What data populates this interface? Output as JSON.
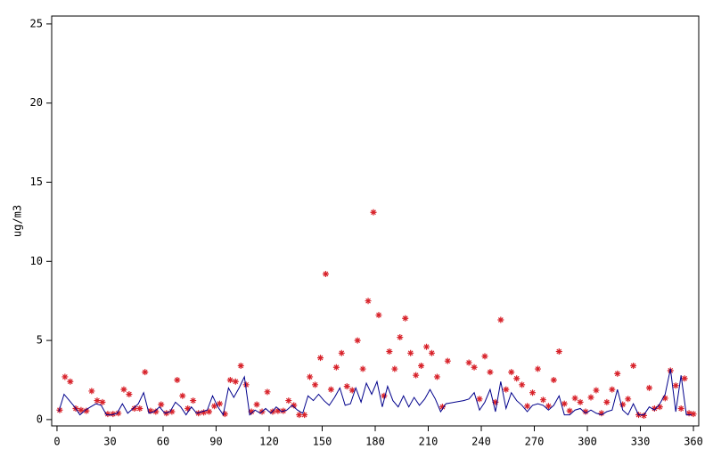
{
  "chart_data": {
    "type": "combo",
    "y_label": "ug/m3",
    "xlim": [
      -3,
      363
    ],
    "ylim": [
      -0.4,
      25.5
    ],
    "xticks": [
      0,
      30,
      60,
      90,
      120,
      150,
      180,
      210,
      240,
      270,
      300,
      330,
      360
    ],
    "yticks": [
      0,
      5,
      10,
      15,
      20,
      25
    ],
    "series": [
      {
        "type": "scatter",
        "color": "#d8222a",
        "x": [
          1.5,
          4.5,
          7.5,
          10.6,
          13.6,
          16.6,
          19.6,
          22.7,
          25.7,
          28.7,
          31.7,
          34.7,
          37.8,
          40.8,
          43.8,
          46.8,
          49.8,
          52.9,
          55.9,
          58.9,
          61.9,
          65,
          68,
          71,
          74,
          77,
          80,
          83,
          86,
          89,
          92,
          95,
          98,
          101,
          104,
          107,
          110,
          113,
          116,
          119,
          122,
          125,
          128,
          131,
          134,
          137,
          140,
          143,
          146,
          149,
          152,
          155,
          158,
          161,
          164,
          167,
          170,
          173,
          176,
          179,
          182,
          185,
          188,
          191,
          194,
          197,
          200,
          203,
          206,
          209,
          212,
          215,
          218,
          221,
          233,
          236,
          239,
          242,
          245,
          248,
          251,
          254,
          257,
          260,
          263,
          266,
          269,
          272,
          275,
          278,
          281,
          284,
          287,
          290,
          293,
          296,
          299,
          302,
          305,
          308,
          311,
          314,
          317,
          320,
          323,
          326,
          329,
          332,
          335,
          338,
          341,
          344,
          347,
          350,
          353,
          355,
          357.5,
          360
        ],
        "values": [
          0.6,
          2.7,
          2.4,
          0.7,
          0.6,
          0.55,
          1.8,
          1.2,
          1.1,
          0.35,
          0.35,
          0.4,
          1.9,
          1.6,
          0.7,
          0.7,
          3.0,
          0.55,
          0.5,
          0.95,
          0.4,
          0.5,
          2.5,
          1.5,
          0.7,
          1.2,
          0.4,
          0.45,
          0.5,
          0.85,
          1.0,
          0.35,
          2.5,
          2.4,
          3.4,
          2.2,
          0.5,
          0.95,
          0.5,
          1.75,
          0.5,
          0.55,
          0.55,
          1.2,
          0.9,
          0.3,
          0.3,
          2.7,
          2.2,
          3.9,
          9.2,
          1.9,
          3.3,
          4.2,
          2.1,
          1.85,
          5.0,
          3.2,
          7.5,
          13.1,
          6.6,
          1.5,
          4.3,
          3.2,
          5.2,
          6.4,
          4.2,
          2.8,
          3.4,
          4.6,
          4.2,
          2.7,
          0.8,
          3.7,
          3.6,
          3.3,
          1.3,
          4.0,
          3.0,
          1.1,
          6.3,
          1.9,
          3.0,
          2.6,
          2.2,
          0.85,
          1.7,
          3.2,
          1.25,
          0.85,
          2.5,
          4.3,
          1.0,
          0.55,
          1.35,
          1.1,
          0.5,
          1.4,
          1.85,
          0.4,
          1.1,
          1.9,
          2.9,
          0.95,
          1.3,
          3.4,
          0.3,
          0.25,
          2.0,
          0.7,
          0.8,
          1.35,
          3.1,
          2.15,
          0.7,
          2.6,
          0.4,
          0.35
        ]
      },
      {
        "type": "line",
        "color": "#00008b",
        "x": [
          1,
          4,
          7,
          10,
          13,
          16,
          19,
          22,
          25,
          28,
          31,
          34,
          37,
          40,
          43,
          46,
          49,
          52,
          55,
          58,
          61,
          64,
          67,
          70,
          73,
          76,
          79,
          82,
          85,
          88,
          91,
          94,
          97,
          100,
          103,
          106,
          109,
          112,
          115,
          118,
          121,
          124,
          127,
          130,
          133,
          136,
          139,
          142,
          145,
          148,
          151,
          154,
          157,
          160,
          163,
          166,
          169,
          172,
          175,
          178,
          181,
          184,
          187,
          190,
          193,
          196,
          199,
          202,
          205,
          208,
          211,
          214,
          217,
          220,
          230,
          233,
          236,
          239,
          242,
          245,
          248,
          251,
          254,
          257,
          260,
          263,
          266,
          269,
          272,
          275,
          278,
          281,
          284,
          287,
          290,
          293,
          296,
          299,
          302,
          305,
          308,
          311,
          314,
          317,
          320,
          323,
          326,
          329,
          332,
          335,
          338,
          341,
          344,
          347,
          350,
          353,
          356,
          359
        ],
        "values": [
          0.5,
          1.6,
          1.2,
          0.8,
          0.3,
          0.6,
          0.8,
          1.0,
          0.9,
          0.3,
          0.3,
          0.4,
          1.0,
          0.4,
          0.7,
          1.0,
          1.7,
          0.4,
          0.5,
          0.8,
          0.4,
          0.5,
          1.1,
          0.8,
          0.3,
          0.8,
          0.4,
          0.5,
          0.6,
          1.5,
          0.8,
          0.3,
          2.0,
          1.4,
          2.0,
          2.7,
          0.3,
          0.6,
          0.4,
          0.7,
          0.4,
          0.8,
          0.5,
          0.6,
          0.9,
          0.6,
          0.4,
          1.5,
          1.2,
          1.6,
          1.2,
          0.9,
          1.4,
          2.0,
          0.9,
          1.0,
          2.0,
          1.1,
          2.3,
          1.6,
          2.4,
          0.8,
          2.1,
          1.2,
          0.8,
          1.5,
          0.8,
          1.4,
          0.9,
          1.3,
          1.9,
          1.3,
          0.5,
          1.0,
          1.2,
          1.3,
          1.7,
          0.6,
          1.1,
          1.9,
          0.5,
          2.4,
          0.7,
          1.7,
          1.2,
          0.9,
          0.5,
          0.9,
          1.0,
          0.9,
          0.6,
          0.9,
          1.5,
          0.3,
          0.3,
          0.6,
          0.7,
          0.4,
          0.6,
          0.4,
          0.3,
          0.5,
          0.6,
          1.9,
          0.6,
          0.3,
          1.0,
          0.3,
          0.3,
          0.8,
          0.6,
          1.0,
          1.6,
          3.2,
          0.5,
          2.8,
          0.3,
          0.3
        ]
      }
    ]
  }
}
